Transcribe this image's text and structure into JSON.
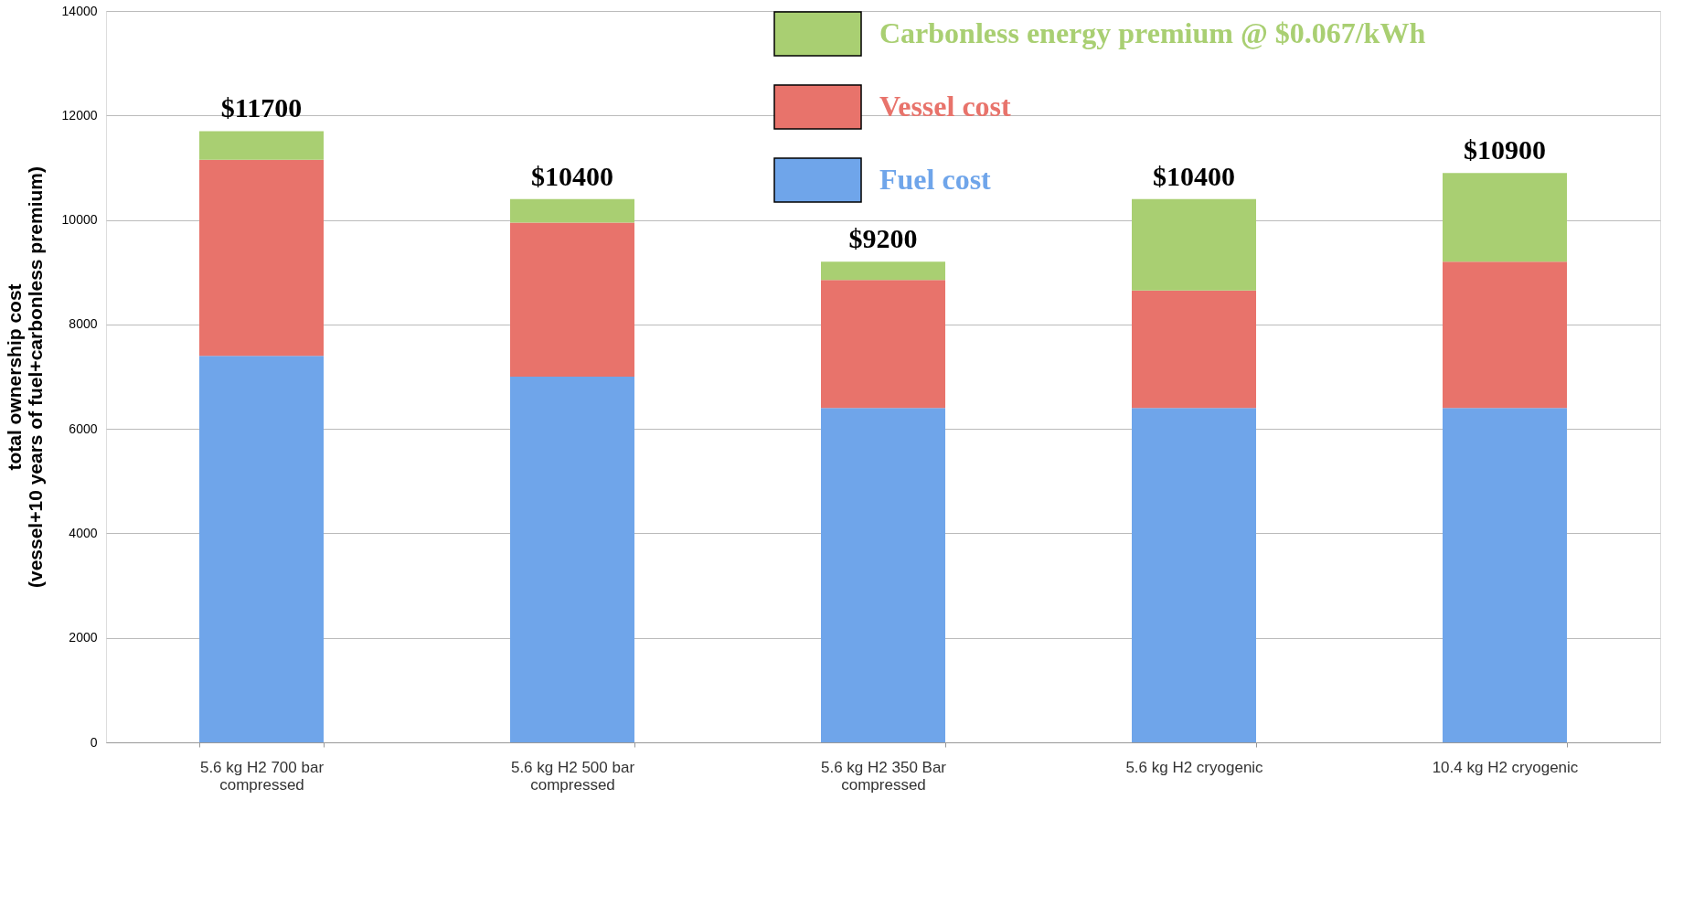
{
  "chart_data": {
    "type": "bar",
    "stacked": true,
    "ylabel": "total ownership cost\n(vessel+10 years of fuel+carbonless premium)",
    "categories": [
      "5.6 kg H2 700 bar\ncompressed",
      "5.6 kg H2 500 bar\ncompressed",
      "5.6 kg H2 350 Bar\ncompressed",
      "5.6 kg H2  cryogenic",
      "10.4 kg H2 cryogenic"
    ],
    "series": [
      {
        "name": "Fuel cost",
        "color": "#6fa5ea",
        "values": [
          7400,
          7000,
          6400,
          6400,
          6400
        ]
      },
      {
        "name": "Vessel cost",
        "color": "#e8736b",
        "values": [
          3750,
          2950,
          2450,
          2250,
          2800
        ]
      },
      {
        "name": "Carbonless energy premium @ $0.067/kWh",
        "color": "#a9cf72",
        "values": [
          550,
          450,
          350,
          1750,
          1700
        ]
      }
    ],
    "totals": [
      "$11700",
      "$10400",
      "$9200",
      "$10400",
      "$10900"
    ],
    "ylim": [
      0,
      14000
    ],
    "yticks": [
      0,
      2000,
      4000,
      6000,
      8000,
      10000,
      12000,
      14000
    ],
    "grid": "y",
    "legend": "top right"
  }
}
